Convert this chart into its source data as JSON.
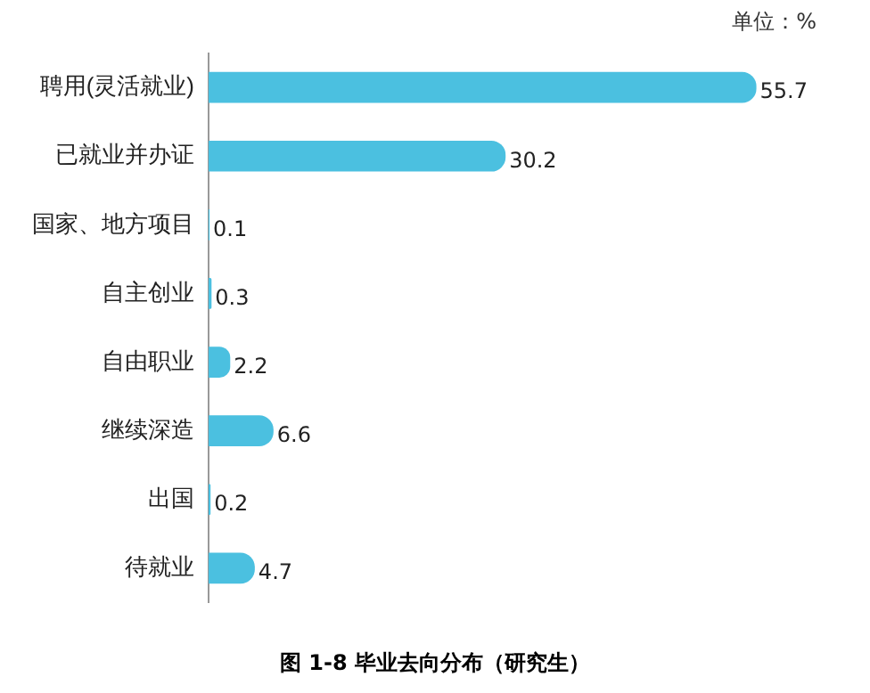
{
  "chart_data": {
    "type": "bar",
    "orientation": "horizontal",
    "title": "图 1-8 毕业去向分布（研究生）",
    "annotations": [
      "单位：%"
    ],
    "categories": [
      "聘用(灵活就业)",
      "已就业并办证",
      "国家、地方项目",
      "自主创业",
      "自由职业",
      "继续深造",
      "出国",
      "待就业"
    ],
    "values": [
      55.7,
      30.2,
      0.1,
      0.3,
      2.2,
      6.6,
      0.2,
      4.7
    ],
    "color": "#4bc0e0",
    "data_labels": true,
    "grid": false,
    "legend": false
  }
}
